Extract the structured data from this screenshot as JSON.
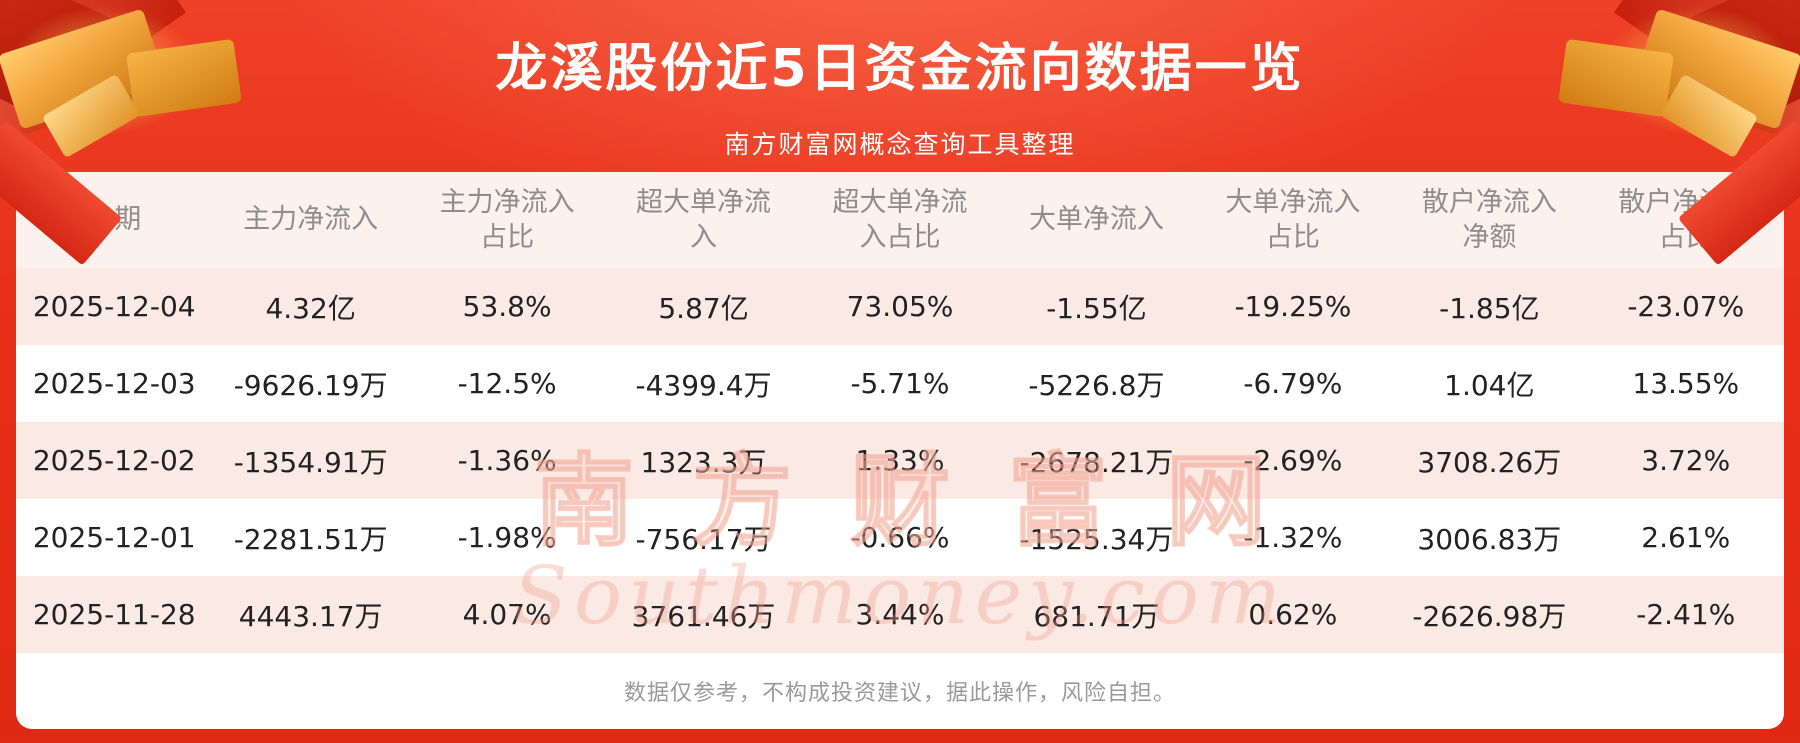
{
  "header": {
    "title": "龙溪股份近5日资金流向数据一览",
    "subtitle": "南方财富网概念查询工具整理"
  },
  "table": {
    "columns": [
      "日期",
      "主力净流入",
      "主力净流入\n占比",
      "超大单净流\n入",
      "超大单净流\n入占比",
      "大单净流入",
      "大单净流入\n占比",
      "散户净流入\n净额",
      "散户净流入\n占比"
    ],
    "rows": [
      [
        "2025-12-04",
        "4.32亿",
        "53.8%",
        "5.87亿",
        "73.05%",
        "-1.55亿",
        "-19.25%",
        "-1.85亿",
        "-23.07%"
      ],
      [
        "2025-12-03",
        "-9626.19万",
        "-12.5%",
        "-4399.4万",
        "-5.71%",
        "-5226.8万",
        "-6.79%",
        "1.04亿",
        "13.55%"
      ],
      [
        "2025-12-02",
        "-1354.91万",
        "-1.36%",
        "1323.3万",
        "1.33%",
        "-2678.21万",
        "-2.69%",
        "3708.26万",
        "3.72%"
      ],
      [
        "2025-12-01",
        "-2281.51万",
        "-1.98%",
        "-756.17万",
        "-0.66%",
        "-1525.34万",
        "-1.32%",
        "3006.83万",
        "2.61%"
      ],
      [
        "2025-11-28",
        "4443.17万",
        "4.07%",
        "3761.46万",
        "3.44%",
        "681.71万",
        "0.62%",
        "-2626.98万",
        "-2.41%"
      ]
    ]
  },
  "watermark": {
    "line1": "南方财富网",
    "line2": "Southmoney.com"
  },
  "footer": {
    "disclaimer": "数据仅参考，不构成投资建议，据此操作，风险自担。"
  },
  "colors": {
    "background_red": "#e62e18",
    "panel_white": "#ffffff",
    "stripe_pink": "#fbe9e4",
    "header_row_bg": "#fdf1ee",
    "header_text": "#8d8d8d",
    "cell_text": "#222222",
    "title_text": "#ffffff",
    "disclaimer_text": "#9a9a9a",
    "gold_accent": "#f2a33c"
  },
  "chart_data": {
    "type": "table",
    "title": "龙溪股份近5日资金流向数据一览",
    "subtitle": "南方财富网概念查询工具整理",
    "columns": [
      "日期",
      "主力净流入",
      "主力净流入占比",
      "超大单净流入",
      "超大单净流入占比",
      "大单净流入",
      "大单净流入占比",
      "散户净流入净额",
      "散户净流入占比"
    ],
    "rows": [
      [
        "2025-12-04",
        "4.32亿",
        "53.8%",
        "5.87亿",
        "73.05%",
        "-1.55亿",
        "-19.25%",
        "-1.85亿",
        "-23.07%"
      ],
      [
        "2025-12-03",
        "-9626.19万",
        "-12.5%",
        "-4399.4万",
        "-5.71%",
        "-5226.8万",
        "-6.79%",
        "1.04亿",
        "13.55%"
      ],
      [
        "2025-12-02",
        "-1354.91万",
        "-1.36%",
        "1323.3万",
        "1.33%",
        "-2678.21万",
        "-2.69%",
        "3708.26万",
        "3.72%"
      ],
      [
        "2025-12-01",
        "-2281.51万",
        "-1.98%",
        "-756.17万",
        "-0.66%",
        "-1525.34万",
        "-1.32%",
        "3006.83万",
        "2.61%"
      ],
      [
        "2025-11-28",
        "4443.17万",
        "4.07%",
        "3761.46万",
        "3.44%",
        "681.71万",
        "0.62%",
        "-2626.98万",
        "-2.41%"
      ]
    ],
    "footnote": "数据仅参考，不构成投资建议，据此操作，风险自担。"
  }
}
